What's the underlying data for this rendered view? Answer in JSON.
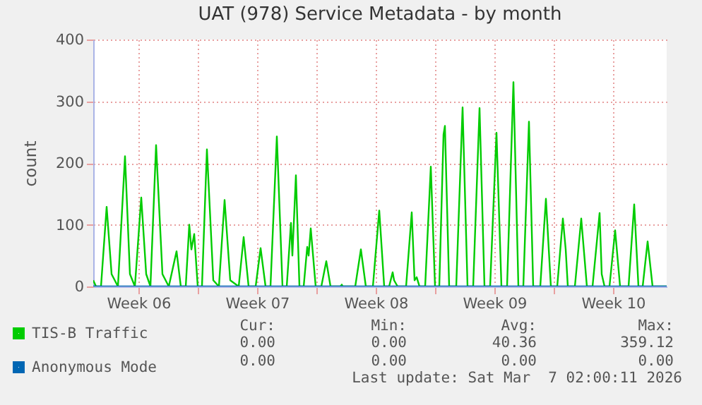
{
  "chart_data": {
    "type": "line",
    "title": "UAT (978) Service Metadata - by month",
    "ylabel": "count",
    "xlim": [
      "2026-02-02T20:00",
      "2026-03-08T16:00"
    ],
    "xticks": [
      {
        "value": "2026-02-05T12:00",
        "label": "Week 06"
      },
      {
        "value": "2026-02-09T00:00",
        "label": null
      },
      {
        "value": "2026-02-12T12:00",
        "label": "Week 07"
      },
      {
        "value": "2026-02-16T00:00",
        "label": null
      },
      {
        "value": "2026-02-19T12:00",
        "label": "Week 08"
      },
      {
        "value": "2026-02-23T00:00",
        "label": null
      },
      {
        "value": "2026-02-26T12:00",
        "label": "Week 09"
      },
      {
        "value": "2026-03-02T00:00",
        "label": null
      },
      {
        "value": "2026-03-05T12:00",
        "label": "Week 10"
      }
    ],
    "ylim": [
      0,
      400
    ],
    "yticks": [
      0,
      100,
      200,
      300,
      400
    ],
    "grid": true,
    "legend": "bottom",
    "marker": "none",
    "line_style": "solid",
    "series": [
      {
        "name": "TIS-B Traffic",
        "color": "#00cc00",
        "x": [
          "2026-02-02T20:00",
          "2026-02-03T00:00",
          "2026-02-03T07:00",
          "2026-02-03T15:00",
          "2026-02-03T22:00",
          "2026-02-04T07:00",
          "2026-02-04T17:00",
          "2026-02-05T00:00",
          "2026-02-05T07:00",
          "2026-02-05T16:00",
          "2026-02-05T23:00",
          "2026-02-06T05:00",
          "2026-02-06T13:00",
          "2026-02-06T22:00",
          "2026-02-07T07:00",
          "2026-02-07T18:00",
          "2026-02-08T00:00",
          "2026-02-08T07:00",
          "2026-02-08T12:00",
          "2026-02-08T15:00",
          "2026-02-08T19:00",
          "2026-02-09T00:00",
          "2026-02-09T06:00",
          "2026-02-09T13:00",
          "2026-02-09T22:00",
          "2026-02-10T06:00",
          "2026-02-10T14:00",
          "2026-02-10T22:00",
          "2026-02-11T10:00",
          "2026-02-11T17:00",
          "2026-02-12T00:00",
          "2026-02-12T10:00",
          "2026-02-12T17:00",
          "2026-02-13T00:00",
          "2026-02-13T07:00",
          "2026-02-13T16:00",
          "2026-02-14T00:00",
          "2026-02-14T06:00",
          "2026-02-14T12:00",
          "2026-02-14T14:00",
          "2026-02-14T19:00",
          "2026-02-15T00:00",
          "2026-02-15T06:00",
          "2026-02-15T11:00",
          "2026-02-15T13:00",
          "2026-02-15T16:00",
          "2026-02-15T23:00",
          "2026-02-16T07:00",
          "2026-02-16T14:00",
          "2026-02-16T20:00",
          "2026-02-17T10:00",
          "2026-02-17T12:00",
          "2026-02-17T13:00",
          "2026-02-18T07:00",
          "2026-02-18T15:00",
          "2026-02-18T22:00",
          "2026-02-19T08:00",
          "2026-02-19T17:00",
          "2026-02-20T00:00",
          "2026-02-20T07:00",
          "2026-02-20T12:00",
          "2026-02-20T14:00",
          "2026-02-20T19:00",
          "2026-02-21T07:00",
          "2026-02-21T15:00",
          "2026-02-21T19:00",
          "2026-02-21T22:00",
          "2026-02-22T02:00",
          "2026-02-22T10:00",
          "2026-02-22T18:00",
          "2026-02-23T00:00",
          "2026-02-23T06:00",
          "2026-02-23T12:00",
          "2026-02-23T14:00",
          "2026-02-23T20:00",
          "2026-02-24T06:00",
          "2026-02-24T15:00",
          "2026-02-24T22:00",
          "2026-02-25T06:00",
          "2026-02-25T15:00",
          "2026-02-25T22:00",
          "2026-02-26T06:00",
          "2026-02-26T15:00",
          "2026-02-26T22:00",
          "2026-02-27T06:00",
          "2026-02-27T15:00",
          "2026-02-27T22:00",
          "2026-02-28T05:00",
          "2026-02-28T13:00",
          "2026-02-28T19:00",
          "2026-03-01T05:00",
          "2026-03-01T13:00",
          "2026-03-01T20:00",
          "2026-03-02T05:00",
          "2026-03-02T13:00",
          "2026-03-02T17:00",
          "2026-03-02T20:00",
          "2026-03-03T06:00",
          "2026-03-03T15:00",
          "2026-03-03T23:00",
          "2026-03-04T07:00",
          "2026-03-04T17:00",
          "2026-03-04T20:00",
          "2026-03-05T00:00",
          "2026-03-05T07:00",
          "2026-03-05T15:00",
          "2026-03-05T22:00",
          "2026-03-06T10:00",
          "2026-03-06T18:00",
          "2026-03-07T00:00",
          "2026-03-07T06:00",
          "2026-03-07T13:00",
          "2026-03-07T20:00",
          "2026-03-08T16:00"
        ],
        "values": [
          10,
          0,
          0,
          129,
          20,
          0,
          211,
          20,
          0,
          144,
          20,
          0,
          229,
          20,
          0,
          57,
          0,
          0,
          100,
          60,
          85,
          0,
          0,
          222,
          10,
          0,
          140,
          10,
          0,
          80,
          0,
          0,
          62,
          0,
          0,
          243,
          0,
          0,
          103,
          50,
          180,
          0,
          0,
          64,
          50,
          94,
          0,
          0,
          41,
          0,
          0,
          3,
          0,
          0,
          60,
          0,
          0,
          123,
          0,
          0,
          23,
          10,
          0,
          0,
          120,
          10,
          15,
          0,
          0,
          194,
          0,
          0,
          246,
          260,
          0,
          0,
          290,
          0,
          0,
          289,
          0,
          0,
          249,
          0,
          0,
          331,
          0,
          0,
          267,
          0,
          0,
          142,
          0,
          0,
          110,
          60,
          0,
          0,
          110,
          0,
          0,
          119,
          20,
          0,
          0,
          91,
          0,
          0,
          133,
          0,
          0,
          73,
          0,
          0
        ]
      },
      {
        "name": "Anonymous Mode",
        "color": "#0066b3",
        "x": [
          "2026-02-02T20:00",
          "2026-03-08T16:00"
        ],
        "values": [
          0,
          0
        ]
      }
    ],
    "annotations": [
      "Cur:",
      "Min:",
      "Avg:",
      "Max:",
      "0.00",
      "0.00",
      "40.36",
      "359.12",
      "0.00",
      "0.00",
      "0.00",
      "0.00",
      "Last update: Sat Mar  7 02:00:11 2026"
    ]
  }
}
